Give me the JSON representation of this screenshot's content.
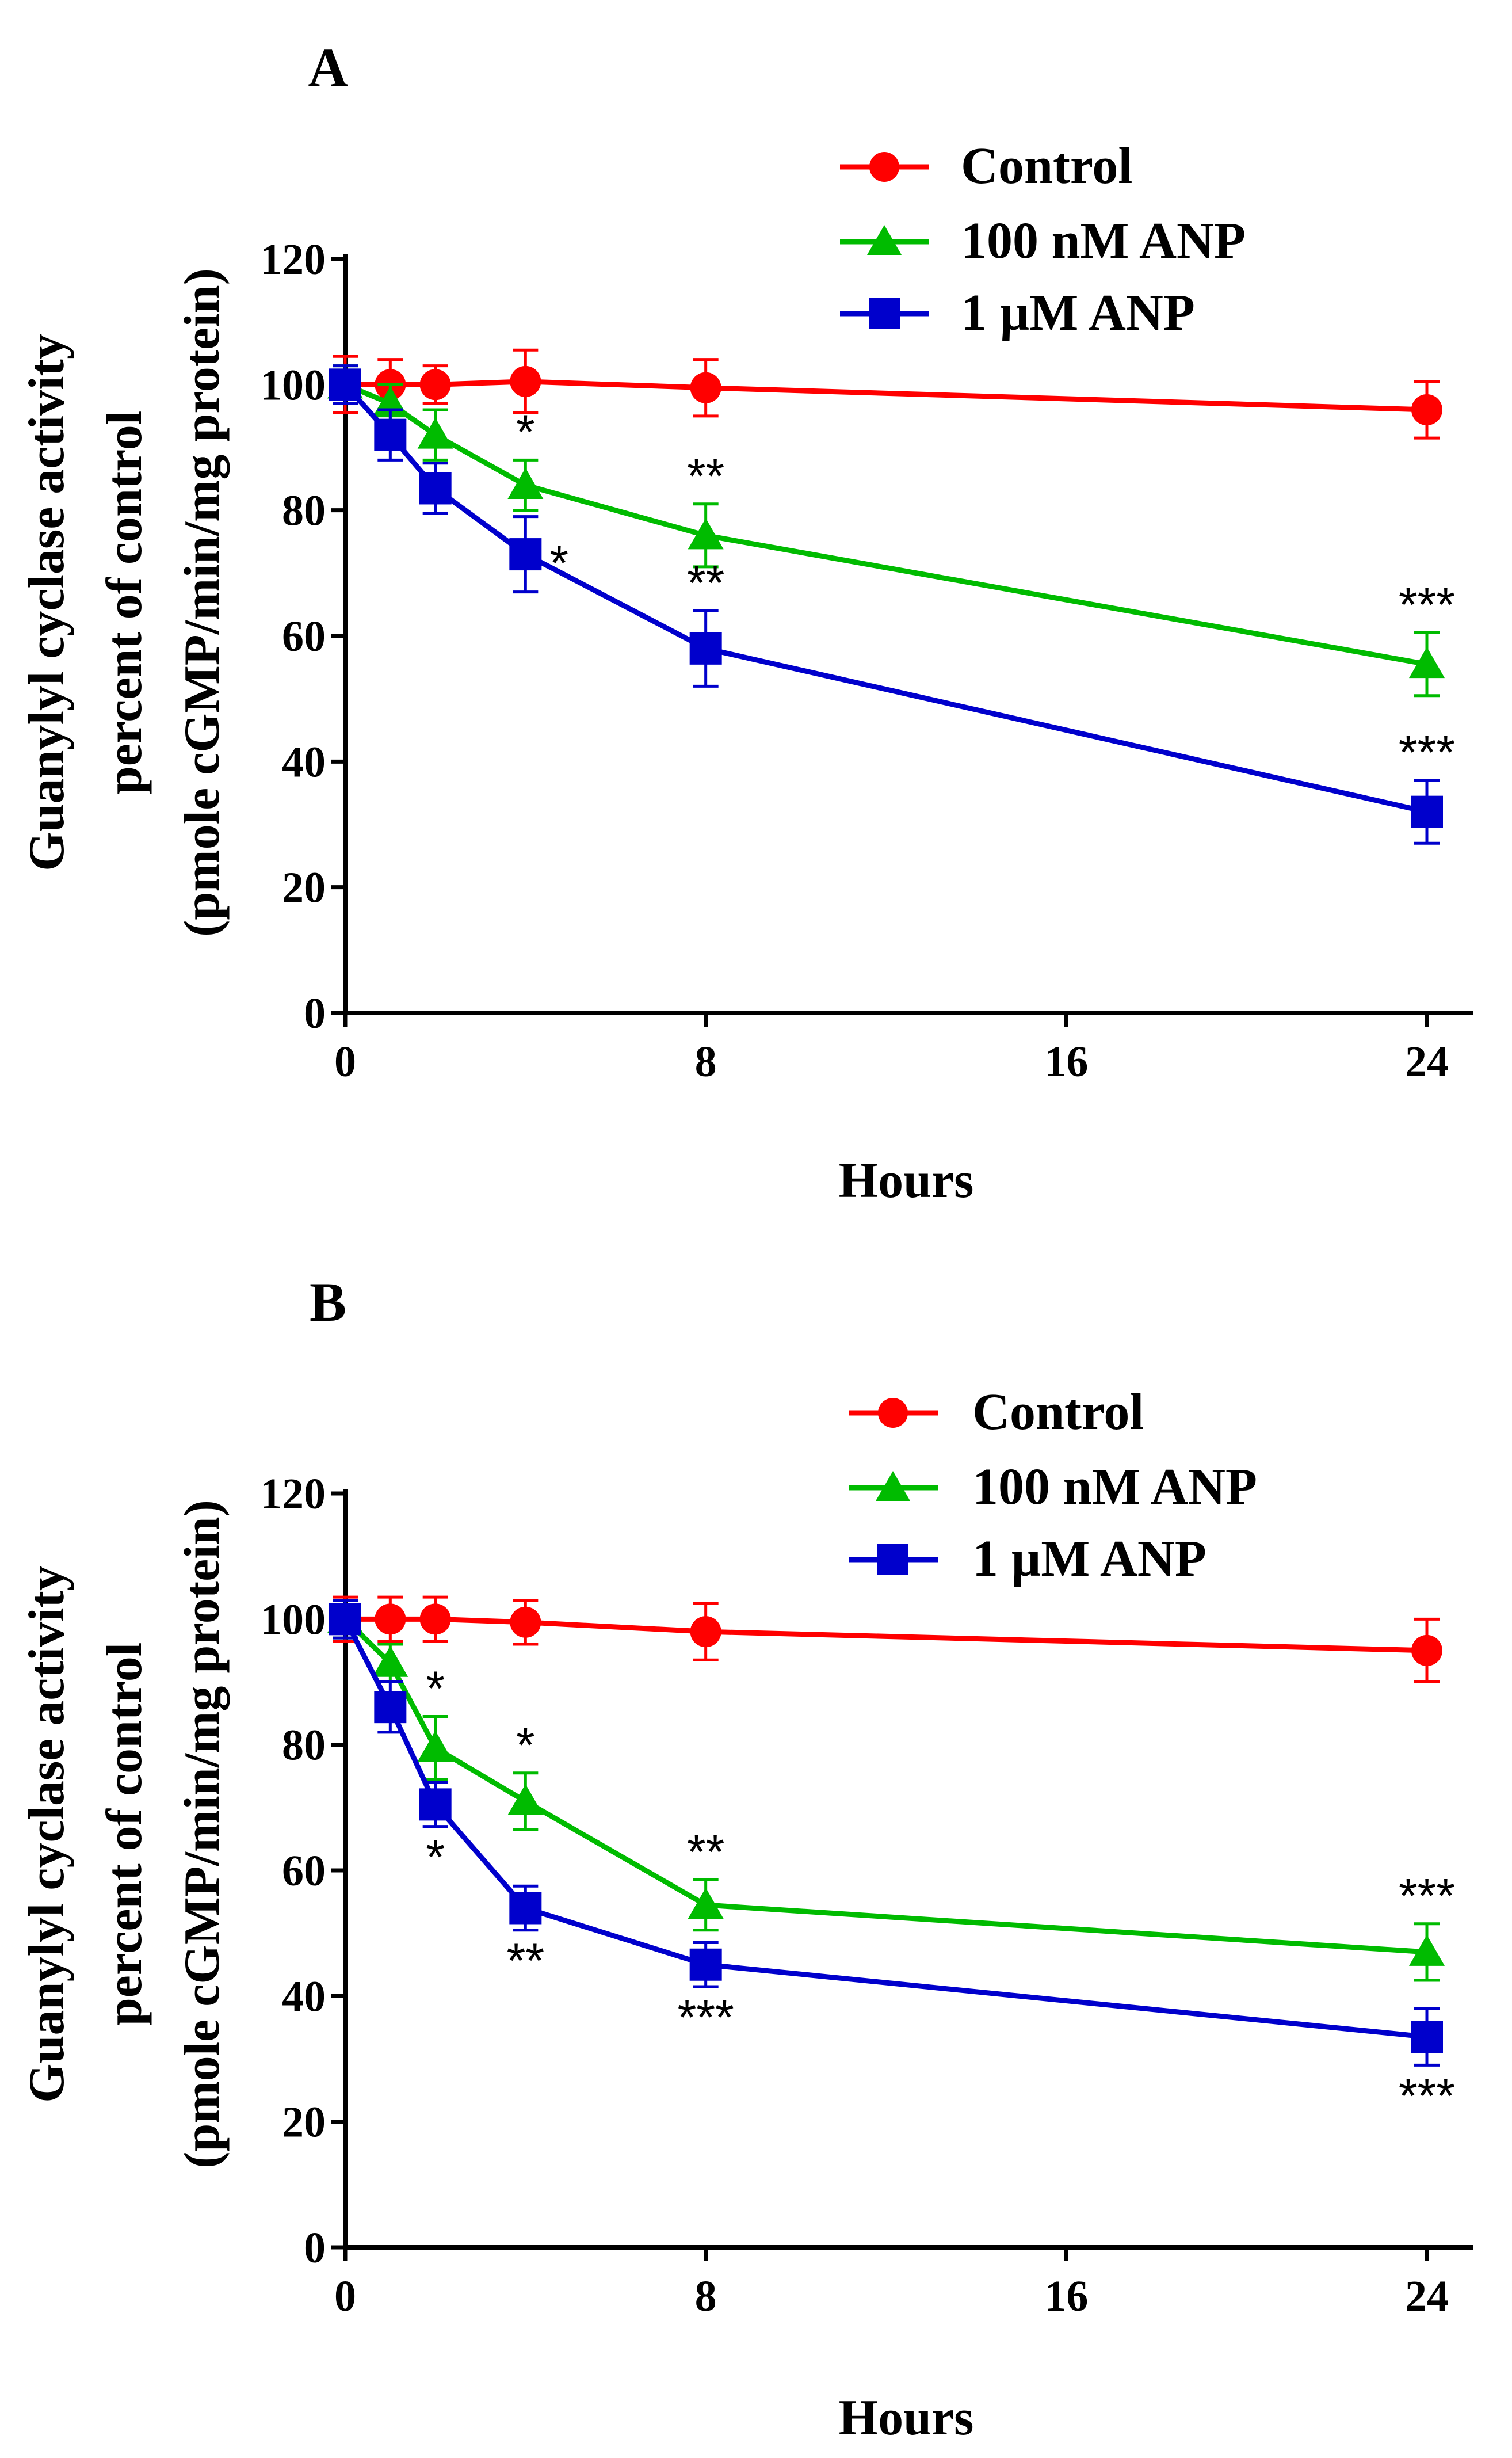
{
  "colors": {
    "control": "#ff0000",
    "nm100": "#00bb00",
    "um1": "#0000cc",
    "axis": "#000000"
  },
  "chart_data": [
    {
      "panel": "A",
      "type": "line",
      "xlabel": "Hours",
      "ylabel": [
        "Guanylyl cyclase activity",
        "percent of control",
        "(pmole cGMP/min/mg protein)"
      ],
      "xlim": [
        0,
        26
      ],
      "ylim": [
        0,
        120
      ],
      "xticks": [
        0,
        8,
        16,
        24
      ],
      "yticks": [
        0,
        20,
        40,
        60,
        80,
        100,
        120
      ],
      "legend_position": "top-right",
      "grid": false,
      "series": [
        {
          "name": "Control",
          "marker": "circle",
          "color_key": "control",
          "x": [
            0,
            1,
            2,
            4,
            8,
            24
          ],
          "y": [
            100,
            100,
            100,
            100.5,
            99.5,
            96
          ],
          "err": [
            4.5,
            4,
            3,
            5,
            4.5,
            4.5
          ],
          "sig": [
            "",
            "",
            "",
            "",
            "",
            ""
          ]
        },
        {
          "name": "100 nM ANP",
          "marker": "triangle",
          "color_key": "nm100",
          "x": [
            0,
            1,
            2,
            4,
            8,
            24
          ],
          "y": [
            100,
            97,
            92,
            84,
            76,
            55.5
          ],
          "err": [
            3,
            3,
            4,
            4,
            5,
            5
          ],
          "sig": [
            "",
            "",
            "",
            "*",
            "**",
            "***"
          ],
          "sig_pos": [
            "",
            "",
            "",
            "above",
            "above",
            "above"
          ]
        },
        {
          "name": "1 µM ANP",
          "marker": "square",
          "color_key": "um1",
          "x": [
            0,
            1,
            2,
            4,
            8,
            24
          ],
          "y": [
            100,
            92,
            83.5,
            73,
            58,
            32
          ],
          "err": [
            3,
            4,
            4,
            6,
            6,
            5
          ],
          "sig": [
            "",
            "",
            "",
            "*",
            "**",
            "***"
          ],
          "sig_pos": [
            "",
            "",
            "",
            "right",
            "above",
            "above"
          ]
        }
      ]
    },
    {
      "panel": "B",
      "type": "line",
      "xlabel": "Hours",
      "ylabel": [
        "Guanylyl cyclase activity",
        "percent of control",
        "(pmole cGMP/min/mg protein)"
      ],
      "xlim": [
        0,
        26
      ],
      "ylim": [
        0,
        120
      ],
      "xticks": [
        0,
        8,
        16,
        24
      ],
      "yticks": [
        0,
        20,
        40,
        60,
        80,
        100,
        120
      ],
      "legend_position": "top-right",
      "grid": false,
      "series": [
        {
          "name": "Control",
          "marker": "circle",
          "color_key": "control",
          "x": [
            0,
            1,
            2,
            4,
            8,
            24
          ],
          "y": [
            100,
            100,
            100,
            99.5,
            98,
            95
          ],
          "err": [
            3.5,
            3.5,
            3.5,
            3.5,
            4.5,
            5
          ],
          "sig": [
            "",
            "",
            "",
            "",
            "",
            ""
          ]
        },
        {
          "name": "100 nM ANP",
          "marker": "triangle",
          "color_key": "nm100",
          "x": [
            0,
            1,
            2,
            4,
            8,
            24
          ],
          "y": [
            100,
            93,
            79.5,
            71,
            54.5,
            47
          ],
          "err": [
            3,
            3,
            5,
            4.5,
            4,
            4.5
          ],
          "sig": [
            "",
            "",
            "*",
            "*",
            "**",
            "***"
          ],
          "sig_pos": [
            "",
            "",
            "above",
            "above",
            "above",
            "above"
          ]
        },
        {
          "name": "1 µM ANP",
          "marker": "square",
          "color_key": "um1",
          "x": [
            0,
            1,
            2,
            4,
            8,
            24
          ],
          "y": [
            100,
            86,
            70.5,
            54,
            45,
            33.5
          ],
          "err": [
            3,
            4,
            3.5,
            3.5,
            3.5,
            4.5
          ],
          "sig": [
            "",
            "",
            "*",
            "**",
            "***",
            "***"
          ],
          "sig_pos": [
            "",
            "",
            "below",
            "below",
            "below",
            "below"
          ]
        }
      ]
    }
  ]
}
